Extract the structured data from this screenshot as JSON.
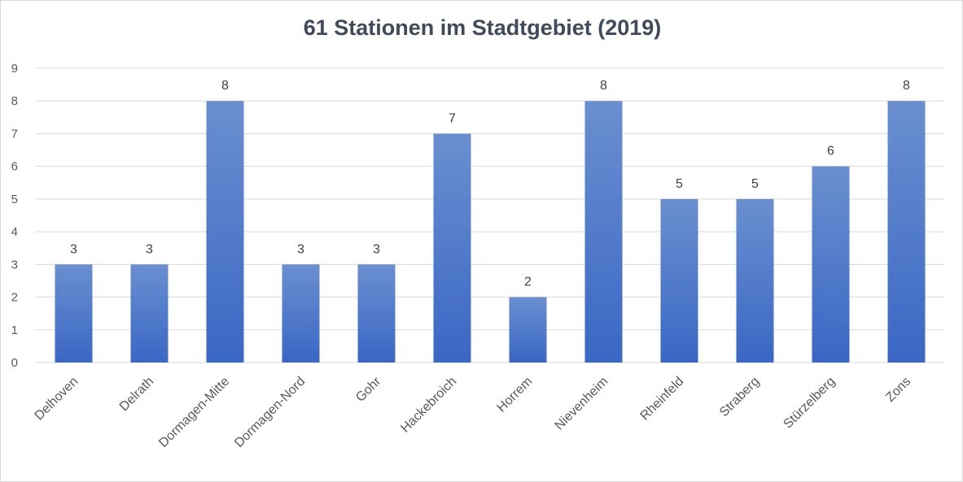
{
  "chart_data": {
    "type": "bar",
    "title": "61 Stationen im Stadtgebiet (2019)",
    "categories": [
      "Delhoven",
      "Delrath",
      "Dormagen-Mitte",
      "Dormagen-Nord",
      "Gohr",
      "Hackebroich",
      "Horrem",
      "Nievenheim",
      "Rheinfeld",
      "Straberg",
      "Stürzelberg",
      "Zons"
    ],
    "values": [
      3,
      3,
      8,
      3,
      3,
      7,
      2,
      8,
      5,
      5,
      6,
      8
    ],
    "ylim": [
      0,
      9
    ],
    "yticks": [
      0,
      1,
      2,
      3,
      4,
      5,
      6,
      7,
      8,
      9
    ],
    "grid": true,
    "legend": "none",
    "bar_color_top": "#6a8fd0",
    "bar_color_bottom": "#3a67c4",
    "grid_color": "#d9d9d9"
  }
}
